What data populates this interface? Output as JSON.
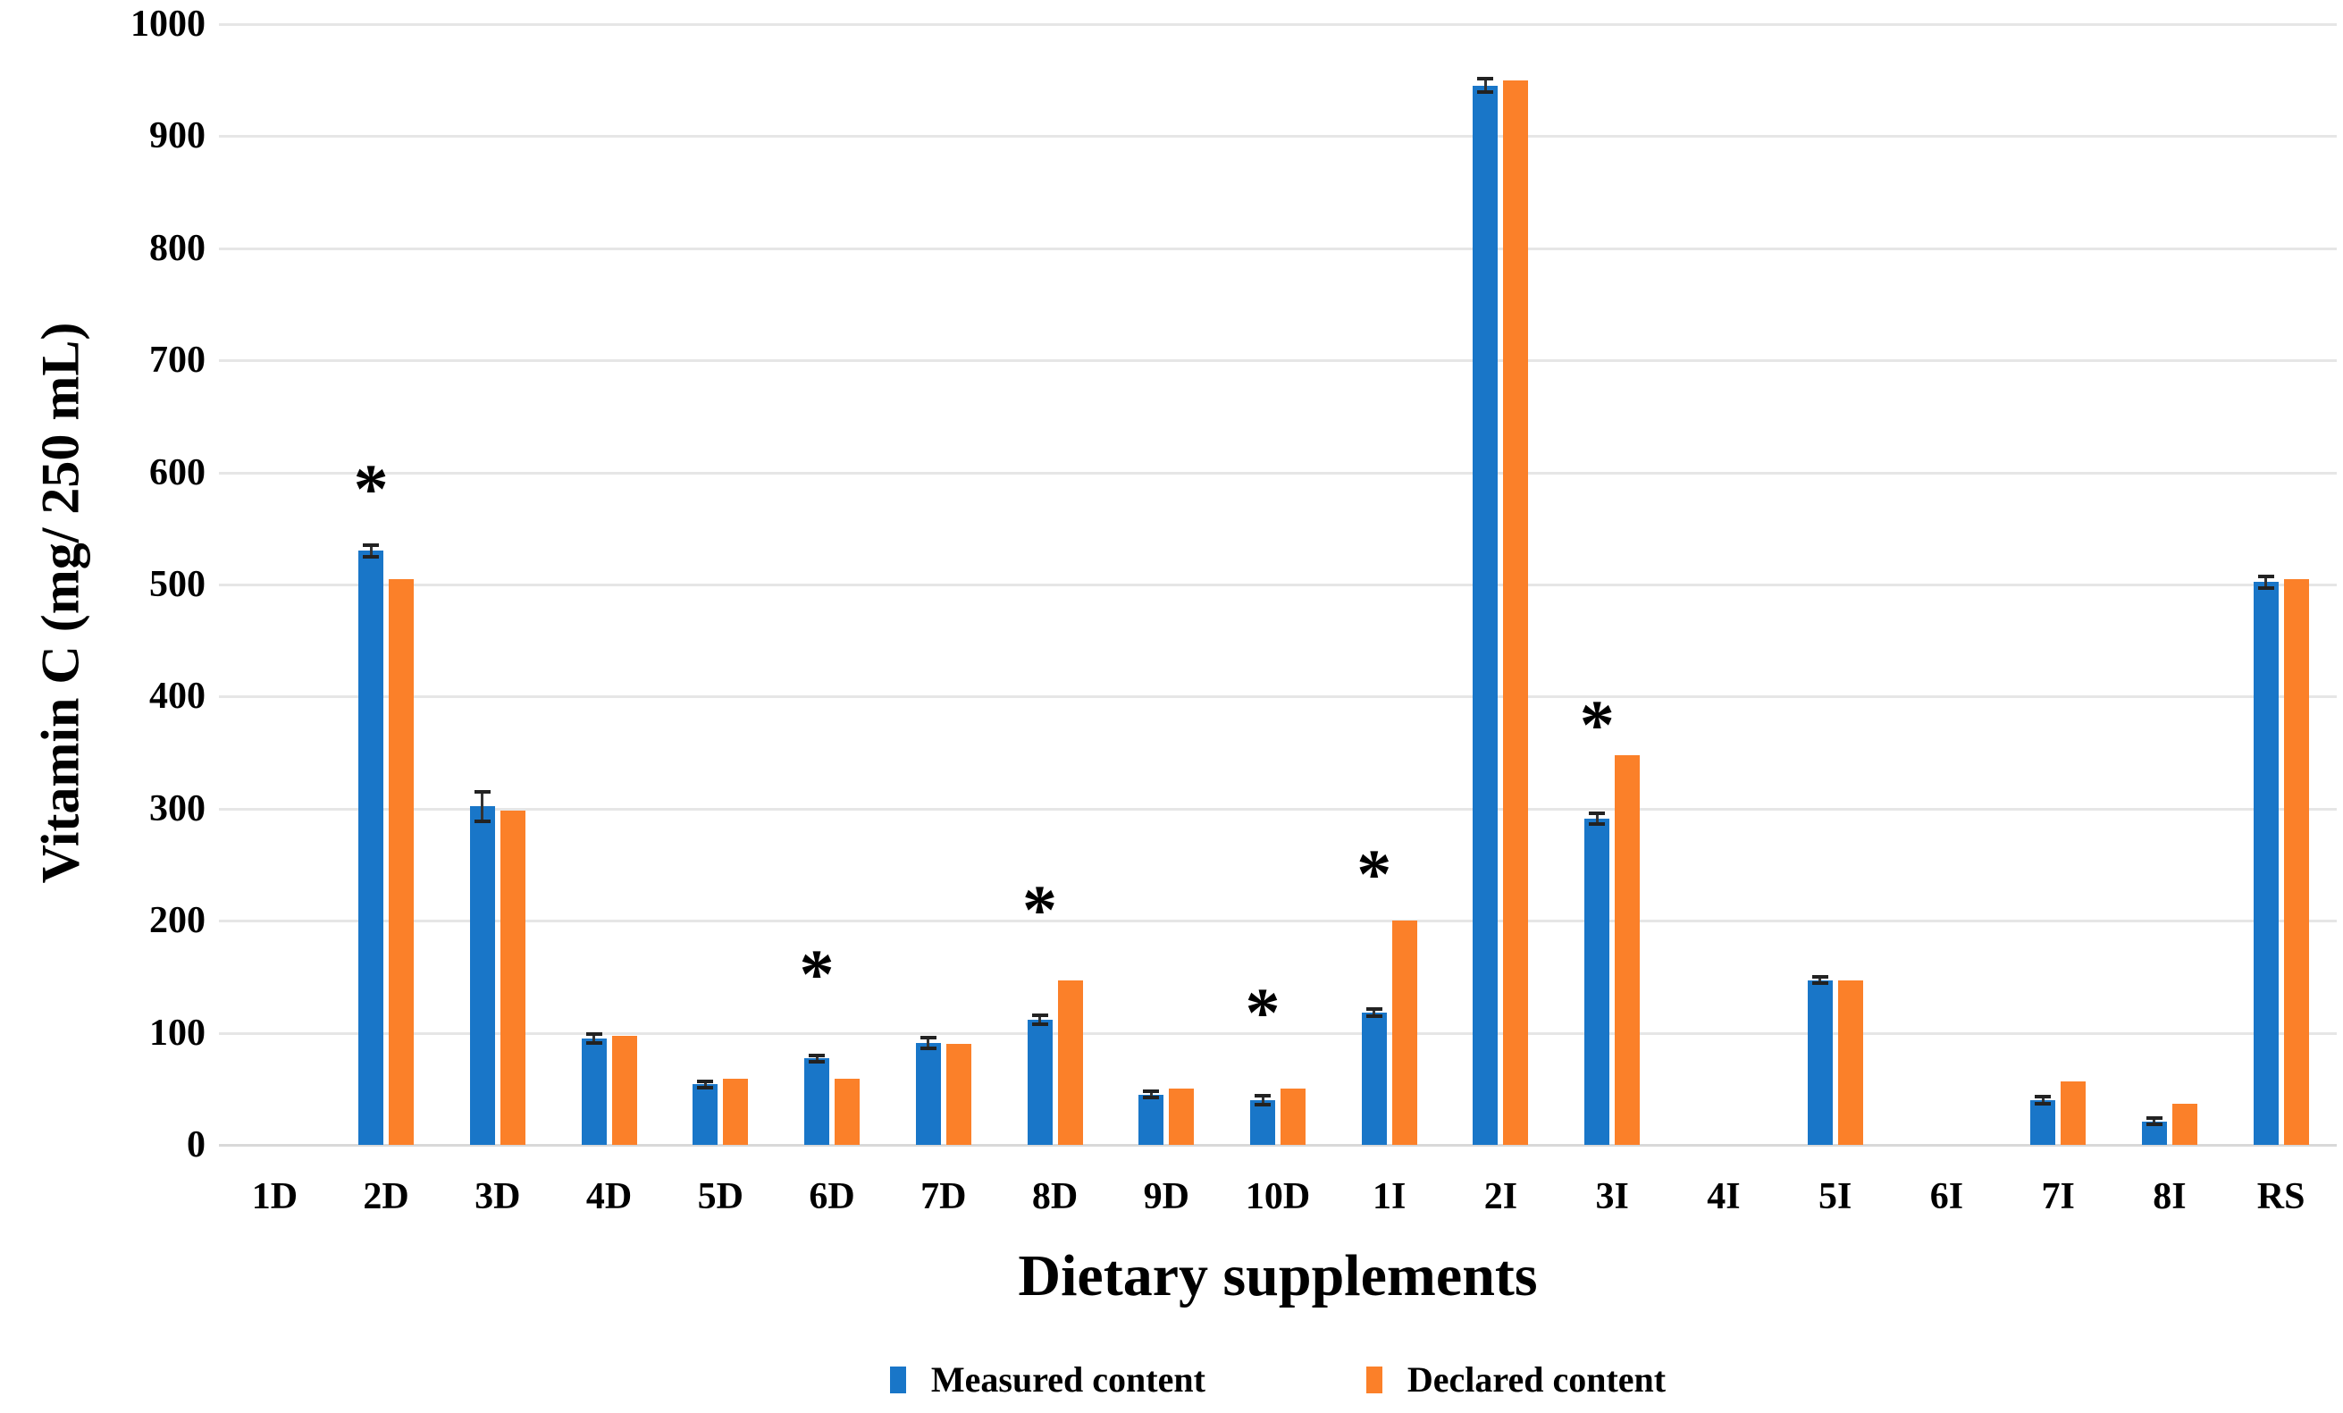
{
  "colors": {
    "measured": "#1976c8",
    "declared": "#fb8029",
    "gridline": "#e6e6e6",
    "baseline": "#d9d9d9",
    "error_bar": "#222222",
    "text": "#000000",
    "background": "#ffffff"
  },
  "axes": {
    "y_title": "Vitamin C (mg/ 250 mL)",
    "x_title": "Dietary supplements",
    "y_ticks": [
      0,
      100,
      200,
      300,
      400,
      500,
      600,
      700,
      800,
      900,
      1000
    ]
  },
  "legend": {
    "measured_label": "Measured content",
    "declared_label": "Declared content"
  },
  "significance_marker": "*",
  "chart_data": {
    "type": "bar",
    "title": "",
    "xlabel": "Dietary supplements",
    "ylabel": "Vitamin C (mg/ 250 mL)",
    "ylim": [
      0,
      1000
    ],
    "ytick_step": 100,
    "grid": true,
    "legend_position": "bottom",
    "categories": [
      "1D",
      "2D",
      "3D",
      "4D",
      "5D",
      "6D",
      "7D",
      "8D",
      "9D",
      "10D",
      "1I",
      "2I",
      "3I",
      "4I",
      "5I",
      "6I",
      "7I",
      "8I",
      "RS"
    ],
    "series": [
      {
        "name": "Measured content",
        "color": "#1976c8",
        "values": [
          null,
          530,
          302,
          95,
          54,
          77,
          91,
          112,
          45,
          40,
          118,
          945,
          291,
          null,
          147,
          null,
          40,
          21,
          502
        ],
        "error_bars": [
          null,
          5,
          13,
          4,
          3,
          3,
          5,
          4,
          3,
          4,
          3,
          6,
          5,
          null,
          3,
          null,
          3,
          3,
          5
        ]
      },
      {
        "name": "Declared content",
        "color": "#fb8029",
        "values": [
          null,
          505,
          298,
          97,
          59,
          59,
          90,
          147,
          50,
          50,
          200,
          950,
          348,
          null,
          147,
          null,
          57,
          37,
          505
        ],
        "error_bars": null
      }
    ],
    "annotations": [
      {
        "category": "2D",
        "symbol": "*",
        "y": 585
      },
      {
        "category": "6D",
        "symbol": "*",
        "y": 152
      },
      {
        "category": "8D",
        "symbol": "*",
        "y": 210
      },
      {
        "category": "10D",
        "symbol": "*",
        "y": 118
      },
      {
        "category": "1I",
        "symbol": "*",
        "y": 242
      },
      {
        "category": "3I",
        "symbol": "*",
        "y": 375
      }
    ]
  }
}
